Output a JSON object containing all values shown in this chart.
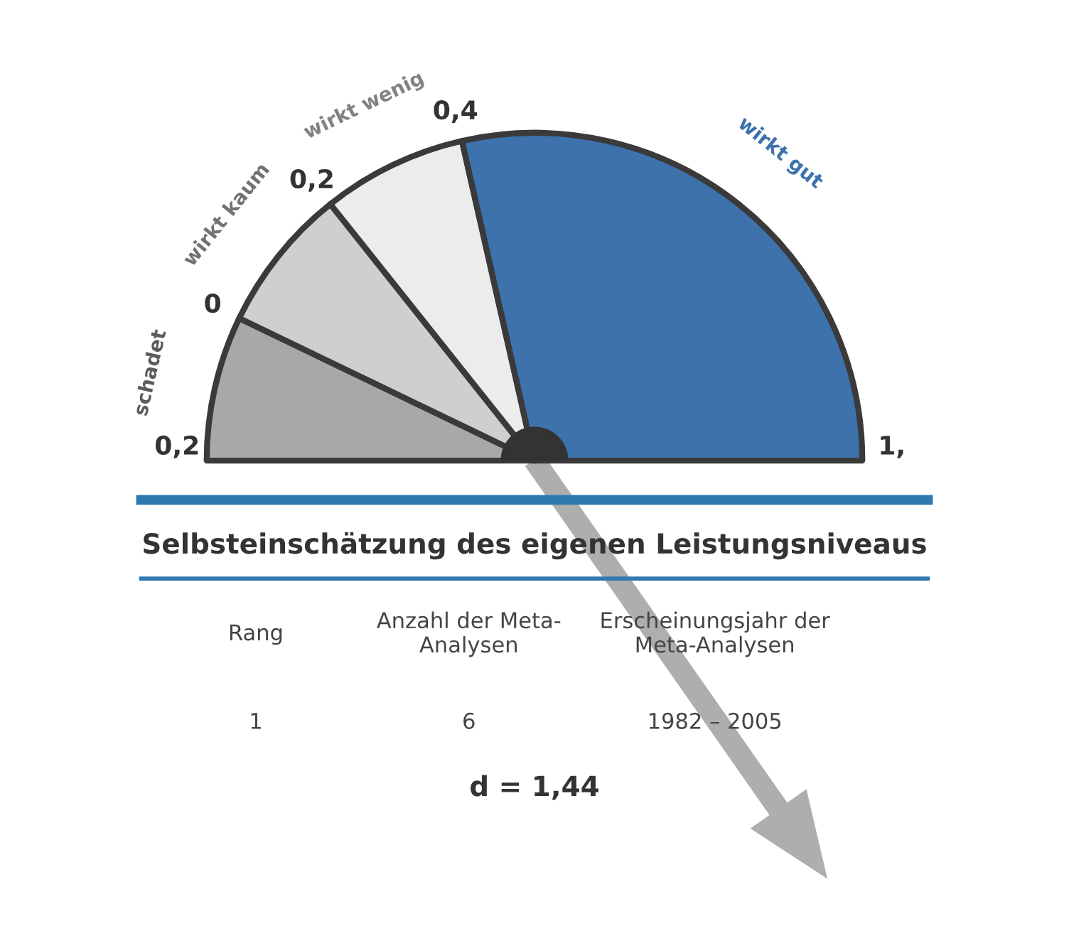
{
  "chart_data": {
    "type": "pie",
    "title": "Selbsteinschätzung des eigenen Leistungsniveaus",
    "categories": [
      "schadet",
      "wirkt kaum",
      "wirkt wenig",
      "wirkt gut"
    ],
    "values": [
      14.3,
      14.3,
      14.3,
      57.1
    ],
    "colors": [
      "#a8a8a8",
      "#cfcfcf",
      "#ececec",
      "#3d72ad"
    ],
    "annotations": [
      "0,2",
      "0",
      "0,2",
      "0,4",
      "1,",
      "Rang",
      "Anzahl der Meta-\nAnalysen",
      "Erscheinungsjahr der\nMeta-Analysen",
      "1",
      "6",
      "1982 – 2005",
      "d = 1,44"
    ]
  }
}
